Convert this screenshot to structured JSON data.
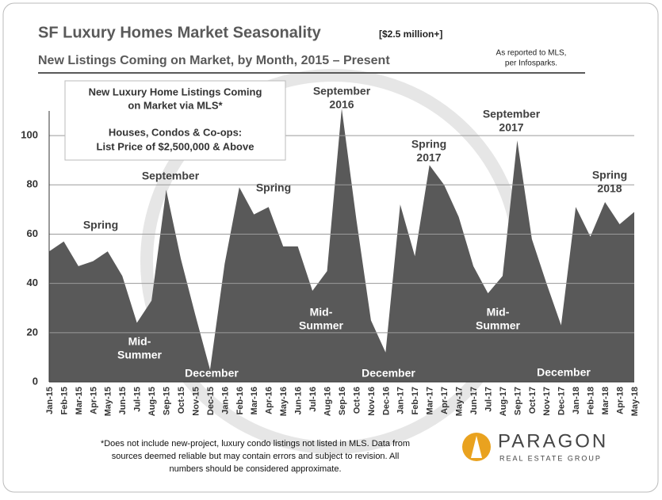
{
  "chart_data": {
    "type": "area",
    "title": "SF Luxury Homes Market Seasonality",
    "title_note": "[$2.5 million+]",
    "subtitle": "New Listings Coming on Market, by Month, 2015 – Present",
    "source_note": [
      "As reported to MLS,",
      "per Infosparks."
    ],
    "box_text": [
      "New Luxury Home Listings Coming",
      "on Market via MLS*",
      "",
      "Houses, Condos & Co-ops:",
      "List Price of $2,500,000  & Above"
    ],
    "categories": [
      "Jan-15",
      "Feb-15",
      "Mar-15",
      "Apr-15",
      "May-15",
      "Jun-15",
      "Jul-15",
      "Aug-15",
      "Sep-15",
      "Oct-15",
      "Nov-15",
      "Dec-15",
      "Jan-16",
      "Feb-16",
      "Mar-16",
      "Apr-16",
      "May-16",
      "Jun-16",
      "Jul-16",
      "Aug-16",
      "Sep-16",
      "Oct-16",
      "Nov-16",
      "Dec-16",
      "Jan-17",
      "Feb-17",
      "Mar-17",
      "Apr-17",
      "May-17",
      "Jun-17",
      "Jul-17",
      "Aug-17",
      "Sep-17",
      "Oct-17",
      "Nov-17",
      "Dec-17",
      "Jan-18",
      "Feb-18",
      "Mar-18",
      "Apr-18",
      "May-18"
    ],
    "values": [
      53,
      57,
      47,
      49,
      53,
      43,
      24,
      33,
      78,
      50,
      27,
      5,
      48,
      79,
      68,
      71,
      55,
      55,
      37,
      45,
      111,
      66,
      25,
      12,
      72,
      51,
      88,
      80,
      67,
      47,
      36,
      43,
      98,
      58,
      40,
      23,
      71,
      59,
      73,
      64,
      69
    ],
    "color": "#595959",
    "ylim": [
      0,
      110
    ],
    "yticks": [
      0,
      20,
      40,
      60,
      80,
      100
    ],
    "grid": true,
    "annotations": [
      [
        "Spring"
      ],
      [
        "Mid-",
        "Summer"
      ],
      [
        "September"
      ],
      [
        "December"
      ],
      [
        "Spring"
      ],
      [
        "Mid-",
        "Summer"
      ],
      [
        "September",
        "2016"
      ],
      [
        "December"
      ],
      [
        "Spring",
        "2017"
      ],
      [
        "September",
        "2017"
      ],
      [
        "Mid-",
        "Summer"
      ],
      [
        "December"
      ],
      [
        "Spring",
        "2018"
      ]
    ],
    "footnote": [
      "*Does not include new-project, luxury condo listings not listed in MLS. Data from",
      "sources deemed reliable but may contain errors and subject to revision.  All",
      "numbers should be considered approximate."
    ],
    "logo": {
      "name": "PARAGON",
      "tagline": "REAL ESTATE GROUP"
    }
  }
}
